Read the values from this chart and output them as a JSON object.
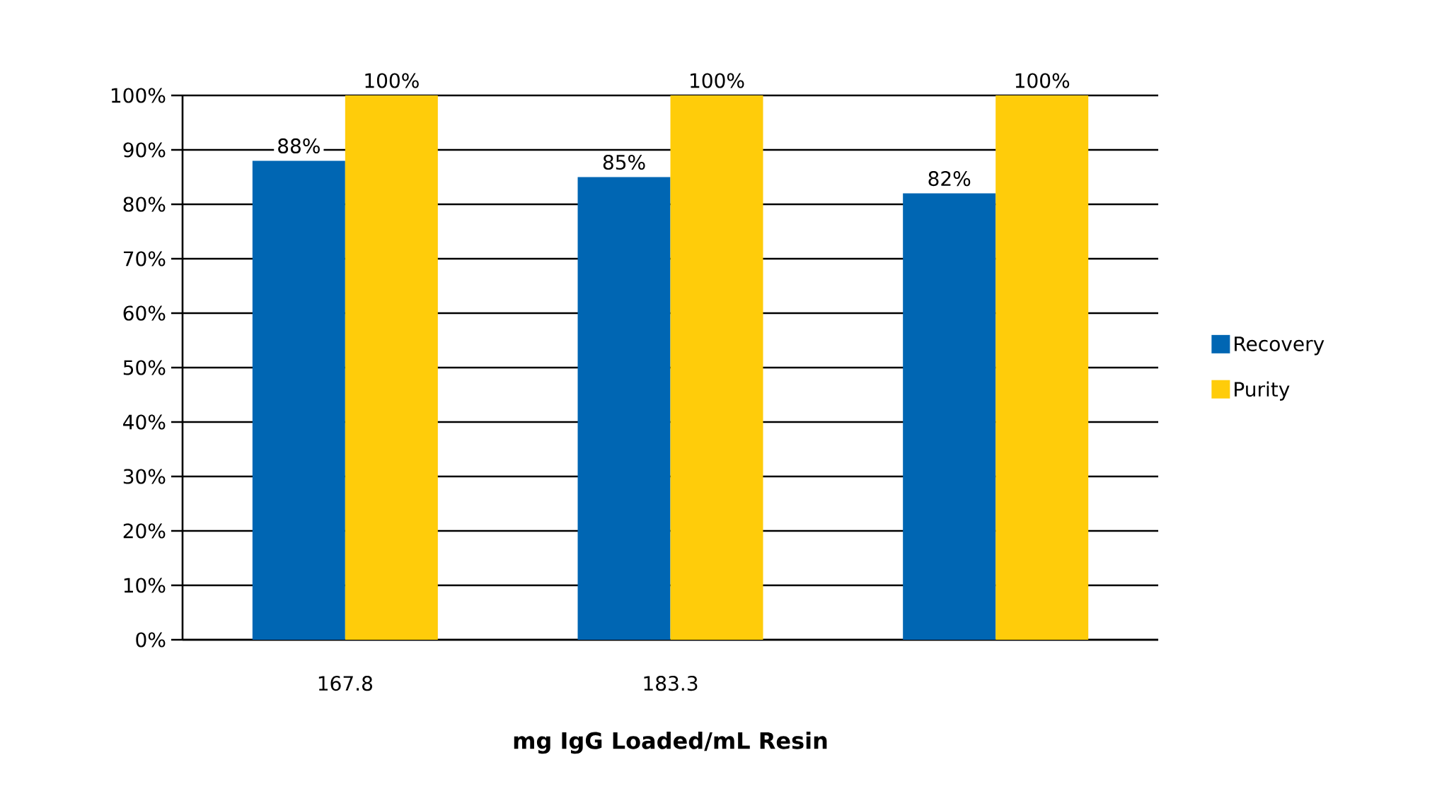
{
  "chart_data": {
    "type": "bar",
    "categories": [
      "167.8",
      "183.3",
      null
    ],
    "series": [
      {
        "name": "Recovery",
        "color": "#0066b3",
        "values": [
          88,
          85,
          82
        ],
        "value_labels": [
          "88%",
          "85%",
          "82%"
        ]
      },
      {
        "name": "Purity",
        "color": "#ffcc0a",
        "values": [
          100,
          100,
          100
        ],
        "value_labels": [
          "100%",
          "100%",
          "100%"
        ]
      }
    ],
    "xlabel": "mg IgG Loaded/mL Resin",
    "ylim": [
      0,
      100
    ],
    "yticks": [
      {
        "value": 0,
        "label": "0%"
      },
      {
        "value": 10,
        "label": "10%"
      },
      {
        "value": 20,
        "label": "20%"
      },
      {
        "value": 30,
        "label": "30%"
      },
      {
        "value": 40,
        "label": "40%"
      },
      {
        "value": 50,
        "label": "50%"
      },
      {
        "value": 60,
        "label": "60%"
      },
      {
        "value": 70,
        "label": "70%"
      },
      {
        "value": 80,
        "label": "80%"
      },
      {
        "value": 90,
        "label": "90%"
      },
      {
        "value": 100,
        "label": "100%"
      }
    ],
    "grid": "y",
    "legend": "right"
  }
}
